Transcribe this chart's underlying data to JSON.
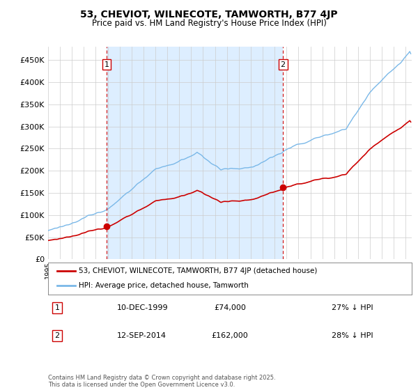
{
  "title": "53, CHEVIOT, WILNECOTE, TAMWORTH, B77 4JP",
  "subtitle": "Price paid vs. HM Land Registry's House Price Index (HPI)",
  "legend_label1": "53, CHEVIOT, WILNECOTE, TAMWORTH, B77 4JP (detached house)",
  "legend_label2": "HPI: Average price, detached house, Tamworth",
  "annotation1_date": "10-DEC-1999",
  "annotation1_price": "£74,000",
  "annotation1_hpi": "27% ↓ HPI",
  "annotation2_date": "12-SEP-2014",
  "annotation2_price": "£162,000",
  "annotation2_hpi": "28% ↓ HPI",
  "footnote": "Contains HM Land Registry data © Crown copyright and database right 2025.\nThis data is licensed under the Open Government Licence v3.0.",
  "hpi_color": "#7ab8e8",
  "price_color": "#cc0000",
  "vline_color": "#cc0000",
  "shade_color": "#ddeeff",
  "ylim": [
    0,
    480000
  ],
  "yticks": [
    0,
    50000,
    100000,
    150000,
    200000,
    250000,
    300000,
    350000,
    400000,
    450000
  ],
  "background_color": "#ffffff",
  "plot_bg_color": "#ffffff",
  "grid_color": "#cccccc",
  "sale1_year": 1999.917,
  "sale1_price": 74000,
  "sale2_year": 2014.7,
  "sale2_price": 162000,
  "xmin": 1995,
  "xmax": 2025.5
}
